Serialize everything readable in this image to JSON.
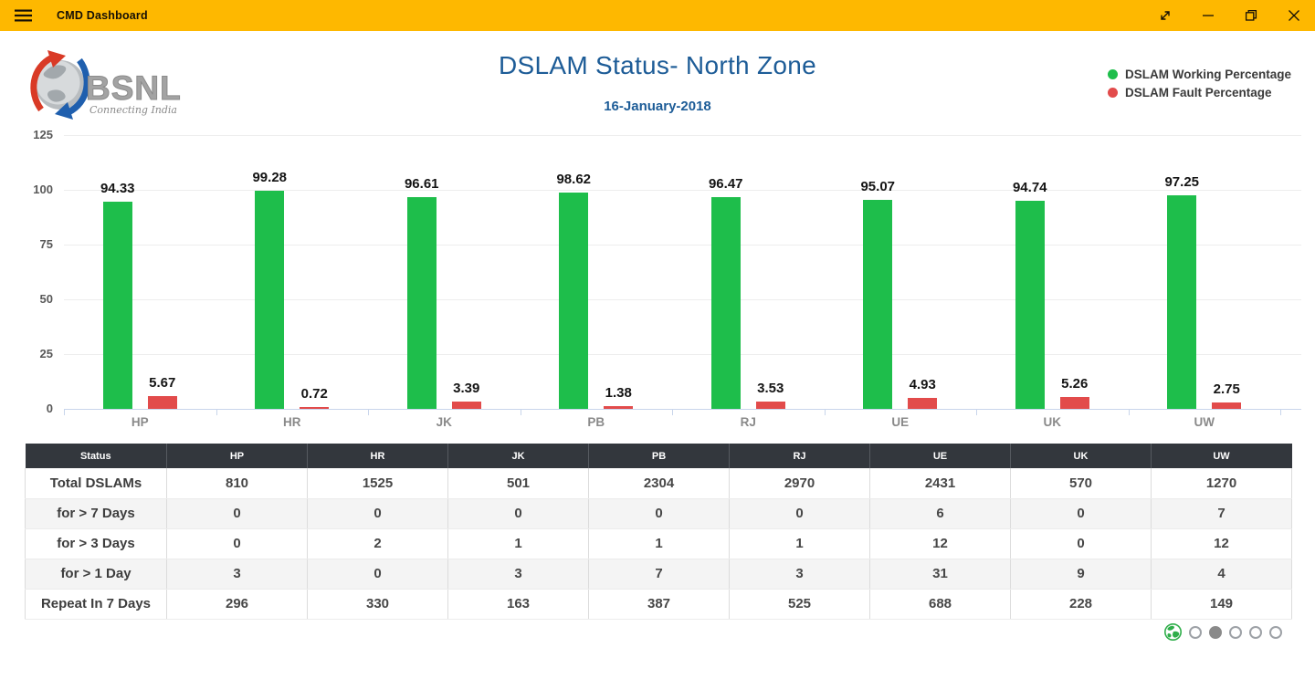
{
  "titlebar": {
    "title": "CMD Dashboard"
  },
  "header": {
    "title": "DSLAM Status- North Zone",
    "date": "16-January-2018"
  },
  "logo": {
    "brand": "BSNL",
    "tagline": "Connecting India"
  },
  "legend": [
    {
      "label": "DSLAM Working Percentage",
      "color": "#1ebe4b"
    },
    {
      "label": "DSLAM Fault Percentage",
      "color": "#e24b4b"
    }
  ],
  "chart_data": {
    "type": "bar",
    "title": "DSLAM Status- North Zone",
    "subtitle": "16-January-2018",
    "categories": [
      "HP",
      "HR",
      "JK",
      "PB",
      "RJ",
      "UE",
      "UK",
      "UW"
    ],
    "series": [
      {
        "name": "DSLAM Working Percentage",
        "color": "#1ebe4b",
        "values": [
          94.33,
          99.28,
          96.61,
          98.62,
          96.47,
          95.07,
          94.74,
          97.25
        ]
      },
      {
        "name": "DSLAM Fault Percentage",
        "color": "#e24b4b",
        "values": [
          5.67,
          0.72,
          3.39,
          1.38,
          3.53,
          4.93,
          5.26,
          2.75
        ]
      }
    ],
    "ylim": [
      0,
      125
    ],
    "yticks": [
      0,
      25,
      50,
      75,
      100,
      125
    ],
    "grid": true,
    "legend_position": "top-right",
    "value_labels": true
  },
  "table": {
    "columns": [
      "Status",
      "HP",
      "HR",
      "JK",
      "PB",
      "RJ",
      "UE",
      "UK",
      "UW"
    ],
    "rows": [
      {
        "label": "Total DSLAMs",
        "values": [
          810,
          1525,
          501,
          2304,
          2970,
          2431,
          570,
          1270
        ]
      },
      {
        "label": "for > 7 Days",
        "values": [
          0,
          0,
          0,
          0,
          0,
          6,
          0,
          7
        ]
      },
      {
        "label": "for > 3 Days",
        "values": [
          0,
          2,
          1,
          1,
          1,
          12,
          0,
          12
        ]
      },
      {
        "label": "for > 1 Day",
        "values": [
          3,
          0,
          3,
          7,
          3,
          31,
          9,
          4
        ]
      },
      {
        "label": "Repeat In 7 Days",
        "values": [
          296,
          330,
          163,
          387,
          525,
          688,
          228,
          149
        ]
      }
    ]
  },
  "pagination": {
    "dots": [
      {
        "active": false
      },
      {
        "active": true
      },
      {
        "active": false
      },
      {
        "active": false
      },
      {
        "active": false
      }
    ]
  },
  "icons": {
    "hamburger-icon": "three horizontal lines",
    "fullscreen-icon": "diagonal double arrow",
    "minimize-icon": "horizontal line",
    "restore-icon": "overlapping squares",
    "close-icon": "x cross",
    "globe-icon": "green globe"
  },
  "colors": {
    "titlebar_bg": "#feb800",
    "title_text": "#1d5c97",
    "working_bar": "#1ebe4b",
    "fault_bar": "#e24b4b",
    "table_header_bg": "#33373d"
  }
}
